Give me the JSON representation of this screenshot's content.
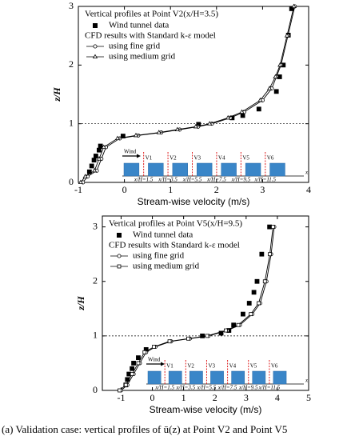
{
  "chart_data": [
    {
      "type": "line",
      "title": "Vertical profiles at Point V2(x/H=3.5)",
      "legend_heading": "CFD results with Standard k-ε model",
      "xlabel": "Stream-wise velocity (m/s)",
      "ylabel": "z/H",
      "xlim": [
        -1,
        4
      ],
      "xticks": [
        -1,
        0,
        1,
        2,
        3,
        4
      ],
      "ylim": [
        0,
        3
      ],
      "yticks": [
        0,
        1,
        2,
        3
      ],
      "hline": 1,
      "series": [
        {
          "name": "Wind tunnel data",
          "marker": "filled-square",
          "color": "#000000",
          "x": [
            3.63,
            3.56,
            3.45,
            3.37,
            3.3,
            2.92,
            2.57,
            2.34,
            1.61,
            -0.03,
            -0.52,
            -0.55,
            -0.62,
            -0.66,
            -0.71,
            -0.76
          ],
          "values": [
            2.96,
            2.51,
            2.0,
            1.8,
            1.55,
            1.25,
            1.14,
            1.1,
            0.99,
            0.79,
            0.62,
            0.55,
            0.45,
            0.38,
            0.28,
            0.18
          ]
        },
        {
          "name": "using fine grid",
          "marker": "circle",
          "color": "#000000",
          "x": [
            -0.9,
            -0.8,
            -0.6,
            -0.5,
            -0.4,
            -0.1,
            0.3,
            0.8,
            1.2,
            1.6,
            1.9,
            2.3,
            2.6,
            3.0,
            3.2,
            3.3,
            3.4,
            3.55,
            3.7
          ],
          "values": [
            0,
            0.1,
            0.2,
            0.4,
            0.6,
            0.75,
            0.8,
            0.85,
            0.9,
            0.95,
            1.0,
            1.1,
            1.2,
            1.4,
            1.6,
            1.8,
            2.0,
            2.5,
            3.0
          ]
        },
        {
          "name": "using medium grid",
          "marker": "triangle",
          "color": "#000000",
          "x": [
            -0.95,
            -0.85,
            -0.65,
            -0.55,
            -0.45,
            -0.15,
            0.25,
            0.75,
            1.15,
            1.55,
            1.85,
            2.25,
            2.55,
            2.95,
            3.15,
            3.28,
            3.38,
            3.53,
            3.68
          ],
          "values": [
            0,
            0.1,
            0.2,
            0.4,
            0.6,
            0.75,
            0.8,
            0.85,
            0.9,
            0.95,
            1.0,
            1.1,
            1.2,
            1.4,
            1.6,
            1.8,
            2.0,
            2.5,
            3.0
          ]
        }
      ],
      "inset": {
        "wind": "Wind",
        "points": [
          "V1",
          "V2",
          "V3",
          "V4",
          "V5",
          "V6"
        ],
        "positions": [
          "x/H=1.5",
          "x/H=3.5",
          "x/H=5.5",
          "x/H=7.5",
          "x/H=9.5",
          "x/H=11.5"
        ],
        "axis": "x"
      }
    },
    {
      "type": "line",
      "title": "Vertical profiles at Point V5(x/H=9.5)",
      "legend_heading": "CFD results with Standard k-ε model",
      "xlabel": "Stream-wise velocity (m/s)",
      "ylabel": "z/H",
      "xlim": [
        -1.6,
        5
      ],
      "xticks": [
        -1,
        0,
        1,
        2,
        3,
        4,
        5
      ],
      "ylim": [
        0,
        3.2
      ],
      "yticks": [
        0,
        1,
        2,
        3
      ],
      "hline": 1,
      "series": [
        {
          "name": "Wind tunnel data",
          "marker": "filled-square",
          "color": "#000000",
          "x": [
            3.75,
            3.5,
            3.35,
            3.25,
            3.1,
            2.9,
            2.6,
            2.45,
            2.2,
            1.6,
            -0.2,
            -0.45,
            -0.6,
            -0.65,
            -0.75,
            -0.8,
            -0.85
          ],
          "values": [
            3.0,
            2.5,
            2.0,
            1.8,
            1.6,
            1.4,
            1.2,
            1.1,
            1.05,
            1.0,
            0.75,
            0.6,
            0.5,
            0.4,
            0.3,
            0.2,
            0.1
          ]
        },
        {
          "name": "using fine grid",
          "marker": "circle",
          "color": "#000000",
          "x": [
            -1.0,
            -0.8,
            -0.6,
            -0.4,
            -0.2,
            0.1,
            0.6,
            1.2,
            1.8,
            2.4,
            2.8,
            3.2,
            3.45,
            3.65,
            3.8,
            3.9
          ],
          "values": [
            0,
            0.1,
            0.3,
            0.5,
            0.7,
            0.8,
            0.9,
            0.95,
            1.0,
            1.1,
            1.2,
            1.4,
            1.6,
            2.0,
            2.5,
            3.0
          ]
        },
        {
          "name": "using medium grid",
          "marker": "square",
          "color": "#000000",
          "x": [
            -1.05,
            -0.85,
            -0.65,
            -0.45,
            -0.25,
            0.05,
            0.55,
            1.15,
            1.75,
            2.35,
            2.75,
            3.15,
            3.4,
            3.6,
            3.76,
            3.86
          ],
          "values": [
            0,
            0.1,
            0.3,
            0.5,
            0.7,
            0.8,
            0.9,
            0.95,
            1.0,
            1.1,
            1.2,
            1.4,
            1.6,
            2.0,
            2.5,
            3.0
          ]
        }
      ],
      "inset": {
        "wind": "Wind",
        "points": [
          "V1",
          "V2",
          "V3",
          "V4",
          "V5",
          "V6"
        ],
        "positions": [
          "x/H=1.5",
          "x/H=3.5",
          "x/H=5.5",
          "x/H=7.5",
          "x/H=9.5",
          "x/H=11.5"
        ],
        "axis": "x"
      }
    }
  ],
  "caption": "(a) Validation case: vertical profiles of ū(z) at Point V2 and Point V5"
}
